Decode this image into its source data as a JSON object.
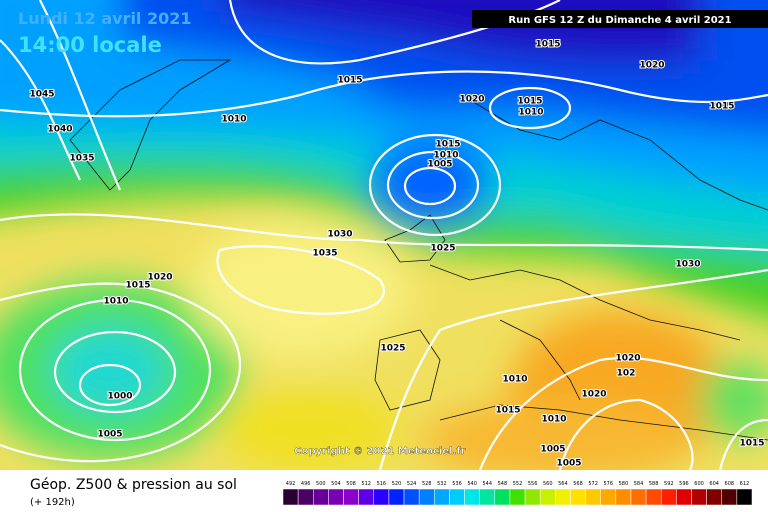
{
  "header": {
    "date": "Lundi 12 avril 2021",
    "time": "14:00 locale",
    "run": "Run GFS 12 Z du Dimanche 4 avril 2021"
  },
  "copyright": "Copyright © 2021 Meteociel.fr",
  "footer": {
    "title": "Géop. Z500 & pression au sol",
    "lead": "(+ 192h)"
  },
  "isobar_labels": [
    "1015",
    "1020",
    "1015",
    "1045",
    "1020",
    "1015",
    "1010",
    "1015",
    "1010",
    "1040",
    "1015",
    "1010",
    "1005",
    "1035",
    "1030",
    "1025",
    "1035",
    "1030",
    "1020",
    "1015",
    "1010",
    "1025",
    "1020",
    "102",
    "1010",
    "1020",
    "1000",
    "1015",
    "1010",
    "1005",
    "1015",
    "1005",
    "1005"
  ],
  "scale": {
    "labels": [
      492,
      496,
      500,
      504,
      508,
      512,
      516,
      520,
      524,
      528,
      532,
      536,
      540,
      544,
      548,
      552,
      556,
      560,
      564,
      568,
      572,
      576,
      580,
      584,
      588,
      592,
      596,
      600,
      604,
      608,
      612
    ],
    "colors": [
      "#2a0033",
      "#4b0066",
      "#660099",
      "#7a00b3",
      "#8c00cc",
      "#5c00e6",
      "#2a00ff",
      "#0022ff",
      "#0050ff",
      "#0080ff",
      "#00a8ff",
      "#00ccff",
      "#00e6e6",
      "#00e6a0",
      "#00e060",
      "#40e000",
      "#90e800",
      "#c8f000",
      "#f0f000",
      "#ffe000",
      "#ffc800",
      "#ffa800",
      "#ff8c00",
      "#ff6e00",
      "#ff4a00",
      "#ff2000",
      "#e00000",
      "#b00000",
      "#800000",
      "#500000",
      "#000000"
    ]
  }
}
